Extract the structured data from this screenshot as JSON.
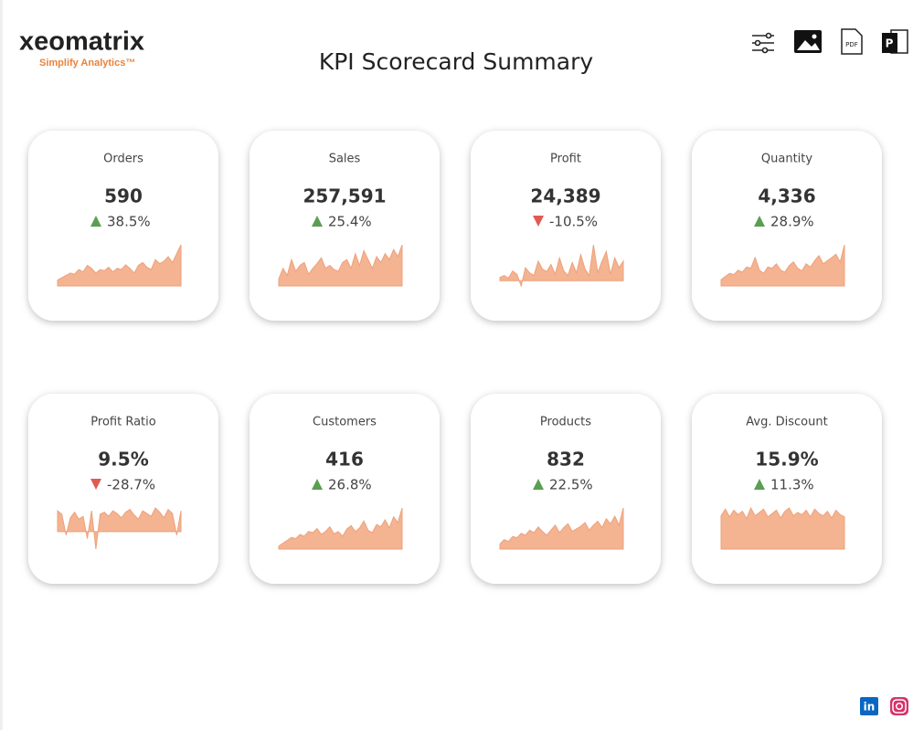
{
  "header": {
    "logo": "xeomatrix",
    "tagline": "Simplify Analytics™",
    "title": "KPI Scorecard Summary"
  },
  "toolbar": {
    "pdf_label": "PDF",
    "ppt_label": "P"
  },
  "social": {
    "linkedin": "in"
  },
  "kpis": [
    {
      "label": "Orders",
      "value": "590",
      "change": "38.5%",
      "direction": "up",
      "trend": [
        10,
        14,
        18,
        22,
        20,
        28,
        24,
        35,
        30,
        22,
        28,
        26,
        32,
        24,
        30,
        28,
        36,
        30,
        22,
        35,
        40,
        32,
        28,
        45,
        38,
        42,
        50,
        40,
        55,
        70
      ]
    },
    {
      "label": "Sales",
      "value": "257,591",
      "change": "25.4%",
      "direction": "up",
      "trend": [
        12,
        30,
        18,
        45,
        25,
        35,
        40,
        20,
        30,
        38,
        48,
        30,
        35,
        28,
        25,
        40,
        45,
        30,
        55,
        35,
        60,
        45,
        30,
        50,
        40,
        55,
        45,
        62,
        50,
        70
      ]
    },
    {
      "label": "Profit",
      "value": "24,389",
      "change": "-10.5%",
      "direction": "down",
      "trend": [
        5,
        8,
        4,
        15,
        10,
        -8,
        20,
        12,
        8,
        30,
        18,
        14,
        25,
        10,
        35,
        15,
        8,
        28,
        12,
        40,
        18,
        8,
        55,
        12,
        30,
        45,
        10,
        35,
        20,
        30
      ]
    },
    {
      "label": "Quantity",
      "value": "4,336",
      "change": "28.9%",
      "direction": "up",
      "trend": [
        10,
        15,
        20,
        18,
        25,
        22,
        30,
        28,
        45,
        25,
        20,
        30,
        28,
        35,
        25,
        22,
        32,
        38,
        28,
        24,
        35,
        30,
        40,
        48,
        35,
        40,
        45,
        50,
        38,
        65
      ]
    },
    {
      "label": "Profit Ratio",
      "value": "9.5%",
      "change": "-28.7%",
      "direction": "down",
      "trend": [
        30,
        25,
        -5,
        20,
        28,
        18,
        22,
        -10,
        30,
        -25,
        25,
        28,
        22,
        30,
        26,
        20,
        28,
        32,
        24,
        18,
        30,
        26,
        22,
        34,
        28,
        20,
        32,
        26,
        -5,
        30
      ]
    },
    {
      "label": "Customers",
      "value": "416",
      "change": "26.8%",
      "direction": "up",
      "trend": [
        5,
        10,
        15,
        20,
        18,
        25,
        22,
        30,
        28,
        35,
        25,
        30,
        38,
        26,
        30,
        22,
        34,
        40,
        30,
        36,
        48,
        32,
        28,
        42,
        38,
        50,
        36,
        55,
        45,
        70
      ]
    },
    {
      "label": "Products",
      "value": "832",
      "change": "22.5%",
      "direction": "up",
      "trend": [
        8,
        15,
        12,
        20,
        18,
        25,
        22,
        30,
        26,
        35,
        28,
        22,
        30,
        38,
        26,
        34,
        40,
        28,
        32,
        36,
        42,
        30,
        38,
        44,
        34,
        48,
        40,
        52,
        38,
        65
      ]
    },
    {
      "label": "Avg. Discount",
      "value": "15.9%",
      "change": "11.3%",
      "direction": "up",
      "trend": [
        60,
        72,
        58,
        70,
        62,
        68,
        55,
        74,
        60,
        66,
        72,
        58,
        64,
        70,
        56,
        68,
        74,
        60,
        66,
        62,
        70,
        58,
        72,
        64,
        60,
        68,
        56,
        70,
        62,
        58
      ]
    }
  ]
}
